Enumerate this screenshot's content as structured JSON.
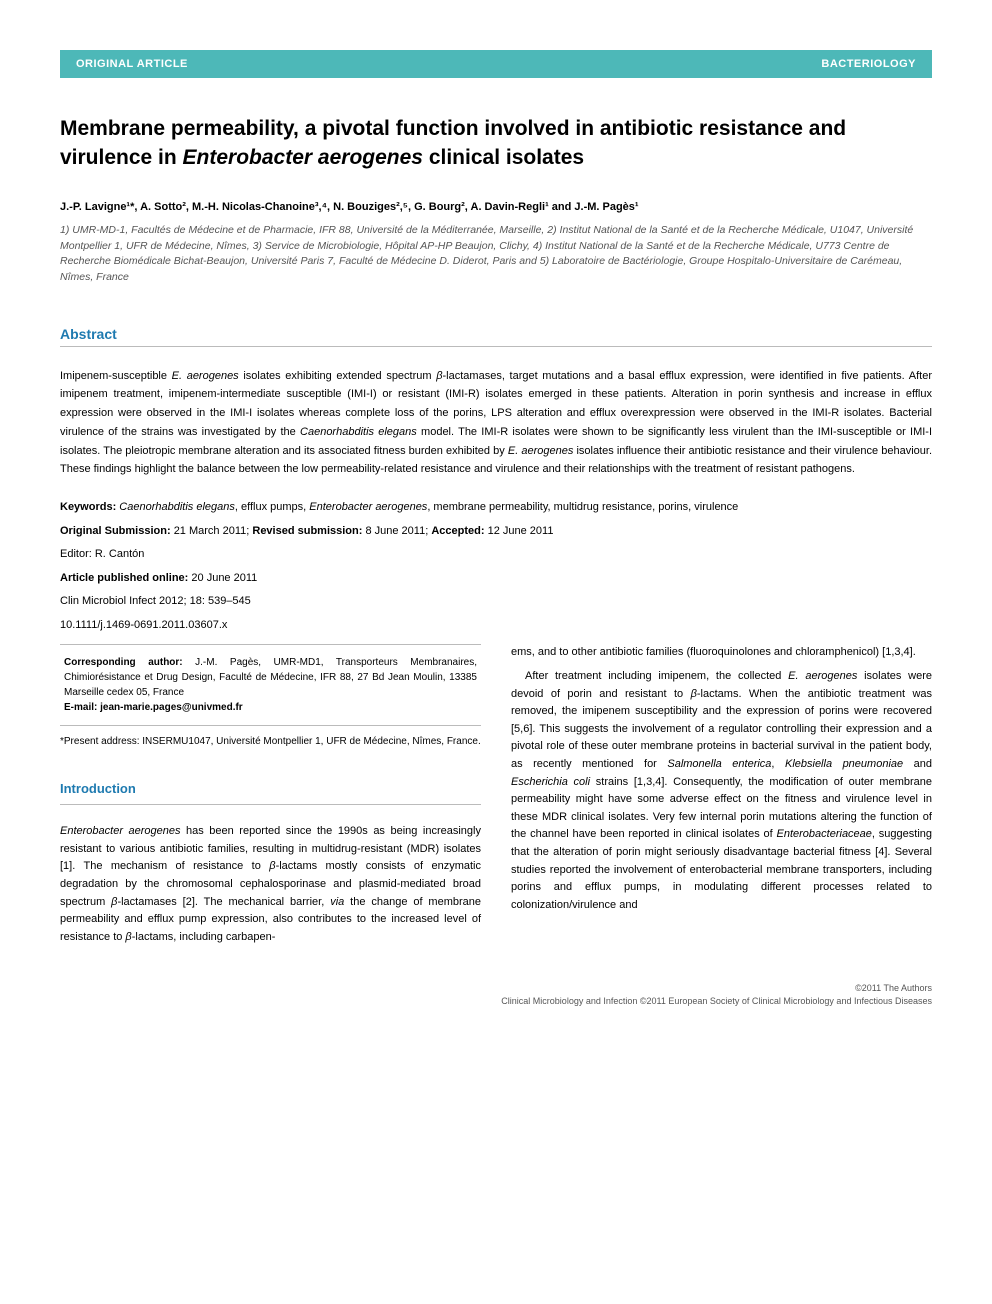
{
  "colors": {
    "header_bg": "#4db8b8",
    "header_text": "#ffffff",
    "section_heading": "#1e7ab0",
    "rule": "#bbbbbb",
    "body_text": "#000000",
    "muted_text": "#555555",
    "background": "#ffffff"
  },
  "typography": {
    "body_font": "Arial, Helvetica, sans-serif",
    "title_size_pt": 16,
    "body_size_pt": 8.5,
    "heading_size_pt": 10.5
  },
  "header": {
    "left": "ORIGINAL ARTICLE",
    "right": "BACTERIOLOGY"
  },
  "title_parts": {
    "pre": "Membrane permeability, a pivotal function involved in antibiotic resistance and virulence in ",
    "italic": "Enterobacter aerogenes",
    "post": " clinical isolates"
  },
  "authors_line": "J.-P. Lavigne¹*, A. Sotto², M.-H. Nicolas-Chanoine³,⁴, N. Bouziges²,⁵, G. Bourg², A. Davin-Regli¹ and J.-M. Pagès¹",
  "affiliations": "1) UMR-MD-1, Facultés de Médecine et de Pharmacie, IFR 88, Université de la Méditerranée, Marseille, 2) Institut National de la Santé et de la Recherche Médicale, U1047, Université Montpellier 1, UFR de Médecine, Nîmes, 3) Service de Microbiologie, Hôpital AP-HP Beaujon, Clichy, 4) Institut National de la Santé et de la Recherche Médicale, U773 Centre de Recherche Biomédicale Bichat-Beaujon, Université Paris 7, Faculté de Médecine D. Diderot, Paris and 5) Laboratoire de Bactériologie, Groupe Hospitalo-Universitaire de Carémeau, Nîmes, France",
  "abstract_heading": "Abstract",
  "abstract_segments": [
    {
      "t": "Imipenem-susceptible "
    },
    {
      "t": "E. aerogenes",
      "i": true
    },
    {
      "t": " isolates exhibiting extended spectrum "
    },
    {
      "t": "β",
      "i": true
    },
    {
      "t": "-lactamases, target mutations and a basal efflux expression, were identified in five patients. After imipenem treatment, imipenem-intermediate susceptible (IMI-I) or resistant (IMI-R) isolates emerged in these patients. Alteration in porin synthesis and increase in efflux expression were observed in the IMI-I isolates whereas complete loss of the porins, LPS alteration and efflux overexpression were observed in the IMI-R isolates. Bacterial virulence of the strains was investigated by the "
    },
    {
      "t": "Caenorhabditis elegans",
      "i": true
    },
    {
      "t": " model. The IMI-R isolates were shown to be significantly less virulent than the IMI-susceptible or IMI-I isolates. The pleiotropic membrane alteration and its associated fitness burden exhibited by "
    },
    {
      "t": "E. aerogenes",
      "i": true
    },
    {
      "t": " isolates influence their antibiotic resistance and their virulence behaviour. These findings highlight the balance between the low permeability-related resistance and virulence and their relationships with the treatment of resistant pathogens."
    }
  ],
  "keywords_label": "Keywords: ",
  "keywords_segments": [
    {
      "t": "Caenorhabditis elegans",
      "i": true
    },
    {
      "t": ", efflux pumps, "
    },
    {
      "t": "Enterobacter aerogenes",
      "i": true
    },
    {
      "t": ", membrane permeability, multidrug resistance, porins, virulence"
    }
  ],
  "dates_line_segments": [
    {
      "t": "Original Submission: ",
      "b": true
    },
    {
      "t": "21 March 2011; "
    },
    {
      "t": "Revised submission: ",
      "b": true
    },
    {
      "t": "8 June 2011; "
    },
    {
      "t": "Accepted: ",
      "b": true
    },
    {
      "t": "12 June 2011"
    }
  ],
  "editor_label": "Editor: ",
  "editor_value": "R. Cantón",
  "pub_label": "Article published online: ",
  "pub_value": "20 June 2011",
  "journal_line": "Clin Microbiol Infect 2012; 18: 539–545",
  "doi": "10.1111/j.1469-0691.2011.03607.x",
  "corr": {
    "label": "Corresponding author: ",
    "text": "J.-M. Pagès, UMR-MD1, Transporteurs Membranaires, Chimiorésistance et Drug Design, Faculté de Médecine, IFR 88, 27 Bd Jean Moulin, 13385 Marseille cedex 05, France",
    "email_label": "E-mail: ",
    "email": "jean-marie.pages@univmed.fr"
  },
  "present_address": "*Present address: INSERMU1047, Université Montpellier 1, UFR de Médecine, Nîmes, France.",
  "intro_heading": "Introduction",
  "left_intro_segments": [
    {
      "t": "Enterobacter aerogenes",
      "i": true
    },
    {
      "t": " has been reported since the 1990s as being increasingly resistant to various antibiotic families, resulting in multidrug-resistant (MDR) isolates [1]. The mechanism of resistance to "
    },
    {
      "t": "β",
      "i": true
    },
    {
      "t": "-lactams mostly consists of enzymatic degradation by the chromosomal cephalosporinase and plasmid-mediated broad spectrum "
    },
    {
      "t": "β",
      "i": true
    },
    {
      "t": "-lactamases [2]. The mechanical barrier, "
    },
    {
      "t": "via",
      "i": true
    },
    {
      "t": " the change of membrane permeability and efflux pump expression, also contributes to the increased level of resistance to "
    },
    {
      "t": "β",
      "i": true
    },
    {
      "t": "-lactams, including carbapen-"
    }
  ],
  "right_p1_segments": [
    {
      "t": "ems, and to other antibiotic families (fluoroquinolones and chloramphenicol) [1,3,4]."
    }
  ],
  "right_p2_segments": [
    {
      "t": "After treatment including imipenem, the collected "
    },
    {
      "t": "E. aerogenes",
      "i": true
    },
    {
      "t": " isolates were devoid of porin and resistant to "
    },
    {
      "t": "β",
      "i": true
    },
    {
      "t": "-lactams. When the antibiotic treatment was removed, the imipenem susceptibility and the expression of porins were recovered [5,6]. This suggests the involvement of a regulator controlling their expression and a pivotal role of these outer membrane proteins in bacterial survival in the patient body, as recently mentioned for "
    },
    {
      "t": "Salmonella enterica",
      "i": true
    },
    {
      "t": ", "
    },
    {
      "t": "Klebsiella pneumoniae",
      "i": true
    },
    {
      "t": " and "
    },
    {
      "t": "Escherichia coli",
      "i": true
    },
    {
      "t": " strains [1,3,4]. Consequently, the modification of outer membrane permeability might have some adverse effect on the fitness and virulence level in these MDR clinical isolates. Very few internal porin mutations altering the function of the channel have been reported in clinical isolates of "
    },
    {
      "t": "Enterobacteriaceae",
      "i": true
    },
    {
      "t": ", suggesting that the alteration of porin might seriously disadvantage bacterial fitness [4]. Several studies reported the involvement of enterobacterial membrane transporters, including porins and efflux pumps, in modulating different processes related to colonization/virulence and"
    }
  ],
  "footer": {
    "line1": "©2011 The Authors",
    "line2": "Clinical Microbiology and Infection ©2011 European Society of Clinical Microbiology and Infectious Diseases"
  }
}
